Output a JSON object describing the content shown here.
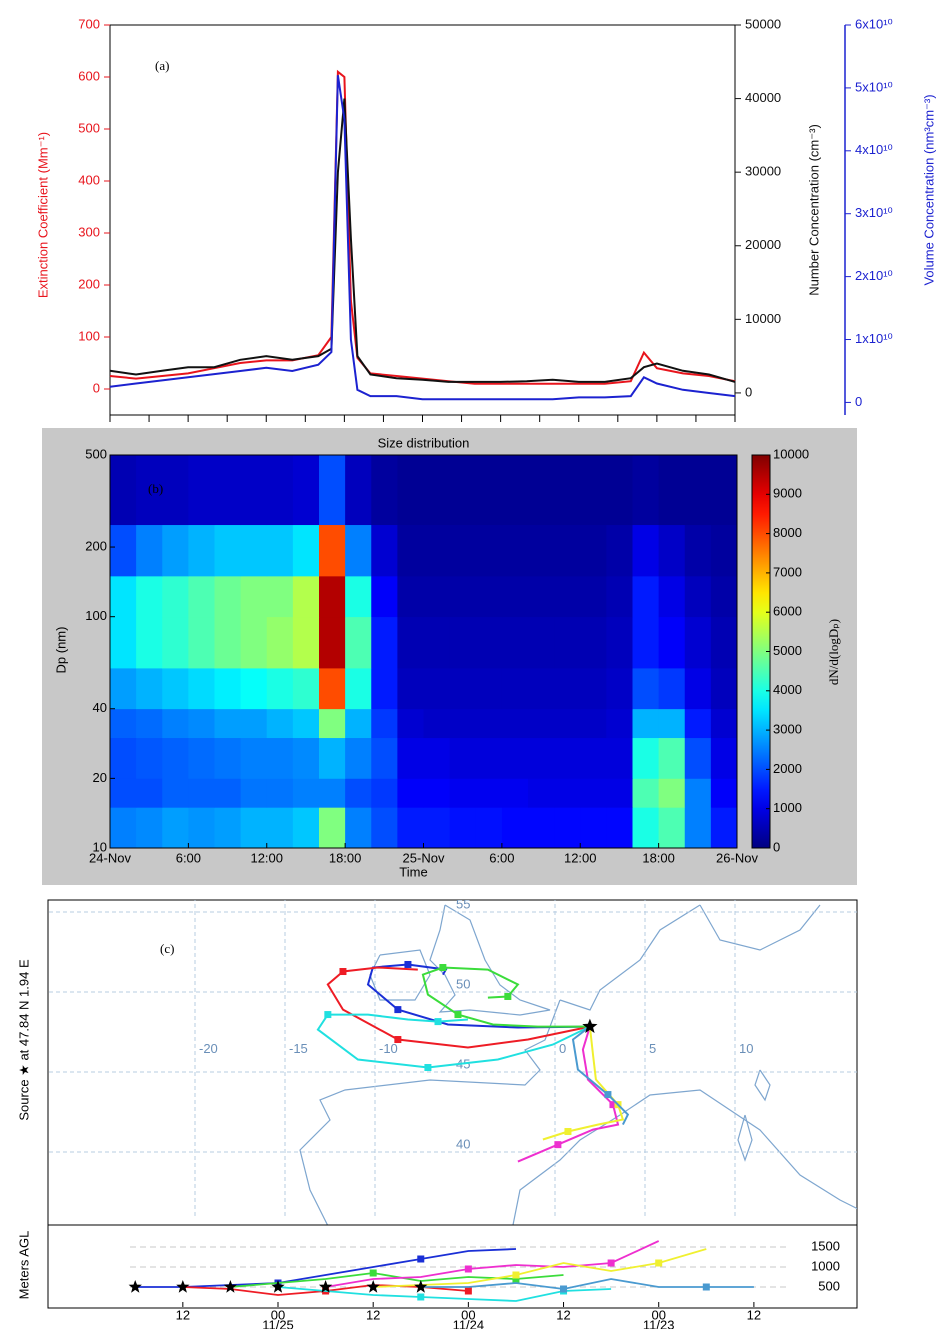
{
  "chart_data": [
    {
      "type": "line",
      "annotation": "(a)",
      "ylabel": "Extinction Coefficient (Mm⁻¹)",
      "y2label": "Number Concentration (cm⁻³)",
      "y3label": "Volume Concentration (nm³cm⁻³)",
      "x": [
        0,
        2,
        4,
        6,
        8,
        10,
        12,
        14,
        16,
        17,
        17.5,
        18,
        18.5,
        19,
        20,
        22,
        24,
        26,
        28,
        30,
        32,
        34,
        36,
        38,
        40,
        41,
        42,
        44,
        46,
        48
      ],
      "xlim": [
        0,
        48
      ],
      "xticks": [
        0,
        3,
        6,
        9,
        12,
        15,
        18,
        21,
        24,
        27,
        30,
        33,
        36,
        39,
        42,
        45,
        48
      ],
      "ylim": [
        -50,
        700
      ],
      "yticks": [
        0,
        100,
        200,
        300,
        400,
        500,
        600,
        700
      ],
      "y2lim": [
        -3000,
        50000
      ],
      "y2ticks": [
        0,
        10000,
        20000,
        30000,
        40000,
        50000
      ],
      "y3lim": [
        -2000000000,
        60000000000
      ],
      "y3ticks": [
        0,
        {
          "value": 10000000000,
          "label": "1x10¹⁰"
        },
        {
          "value": 20000000000,
          "label": "2x10¹⁰"
        },
        {
          "value": 30000000000,
          "label": "3x10¹⁰"
        },
        {
          "value": 40000000000,
          "label": "4x10¹⁰"
        },
        {
          "value": 50000000000,
          "label": "5x10¹⁰"
        },
        {
          "value": 60000000000,
          "label": "6x10¹⁰"
        }
      ],
      "series": [
        {
          "color": "#e8141c",
          "values": [
            25,
            20,
            25,
            30,
            40,
            50,
            55,
            55,
            65,
            100,
            610,
            600,
            170,
            60,
            30,
            25,
            20,
            15,
            10,
            10,
            10,
            10,
            10,
            10,
            15,
            70,
            40,
            30,
            25,
            15
          ]
        },
        {
          "color": "#111111",
          "axis": "y2",
          "values": [
            3000,
            2500,
            3000,
            3500,
            3500,
            4500,
            5000,
            4500,
            5000,
            6000,
            30000,
            40000,
            21000,
            5000,
            2500,
            2000,
            1800,
            1500,
            1500,
            1500,
            1600,
            1800,
            1500,
            1500,
            2000,
            3500,
            4000,
            3000,
            2500,
            1500
          ]
        },
        {
          "color": "#1c22d0",
          "axis": "y3",
          "values": [
            2500000000,
            3000000000,
            3500000000,
            4000000000,
            4500000000,
            5000000000,
            5500000000,
            5000000000,
            6000000000,
            8000000000,
            52000000000,
            45000000000,
            10000000000,
            2000000000,
            1000000000,
            1000000000,
            500000000,
            500000000,
            500000000,
            500000000,
            500000000,
            500000000,
            800000000,
            800000000,
            1000000000,
            4000000000,
            3000000000,
            2000000000,
            1500000000,
            1000000000
          ]
        }
      ]
    },
    {
      "type": "heatmap",
      "title": "Size distribution",
      "annotation": "(b)",
      "ylabel": "Dp (nm)",
      "xlabel": "Time",
      "colorbar_label": "dN/d(logDₚ)",
      "xlim": [
        0,
        48
      ],
      "xticks": [
        {
          "value": 0,
          "label": "24-Nov"
        },
        {
          "value": 6,
          "label": "6:00"
        },
        {
          "value": 12,
          "label": "12:00"
        },
        {
          "value": 18,
          "label": "18:00"
        },
        {
          "value": 24,
          "label": "25-Nov"
        },
        {
          "value": 30,
          "label": "6:00"
        },
        {
          "value": 36,
          "label": "12:00"
        },
        {
          "value": 42,
          "label": "18:00"
        },
        {
          "value": 48,
          "label": "26-Nov"
        }
      ],
      "ylim": [
        10,
        500
      ],
      "yticks": [
        10,
        20,
        40,
        100,
        200,
        500
      ],
      "log_y": true,
      "xbins": [
        0,
        2,
        4,
        6,
        8,
        10,
        12,
        14,
        16,
        18,
        20,
        22,
        24,
        26,
        28,
        30,
        32,
        34,
        36,
        38,
        40,
        42,
        44,
        46,
        48
      ],
      "ybins": [
        10,
        15,
        20,
        30,
        40,
        60,
        100,
        150,
        250,
        500
      ],
      "z": [
        [
          2500,
          2600,
          2800,
          2700,
          2800,
          3000,
          3000,
          3200,
          5000,
          2500,
          2000,
          1500,
          1500,
          1400,
          1400,
          1300,
          1300,
          1300,
          1300,
          1300,
          4000,
          4500,
          2500,
          1500
        ],
        [
          2000,
          2000,
          2200,
          2200,
          2200,
          2400,
          2400,
          2500,
          2500,
          2000,
          1800,
          1200,
          1200,
          1100,
          1100,
          1100,
          1000,
          1000,
          1000,
          1000,
          4500,
          5000,
          2500,
          1200
        ],
        [
          2000,
          2100,
          2200,
          2300,
          2400,
          2500,
          2500,
          2600,
          3000,
          2500,
          2000,
          1000,
          1000,
          900,
          900,
          900,
          900,
          900,
          900,
          900,
          4000,
          4500,
          2000,
          1000
        ],
        [
          2200,
          2300,
          2500,
          2600,
          2800,
          2800,
          3000,
          3200,
          5000,
          3000,
          1800,
          800,
          700,
          700,
          700,
          700,
          700,
          700,
          700,
          800,
          3000,
          3000,
          1500,
          800
        ],
        [
          2800,
          3000,
          3200,
          3400,
          3600,
          3800,
          4000,
          4200,
          8000,
          4000,
          1500,
          600,
          600,
          600,
          600,
          600,
          600,
          600,
          600,
          700,
          2000,
          1800,
          1000,
          600
        ],
        [
          3500,
          4000,
          4200,
          4500,
          4800,
          5000,
          5200,
          5500,
          9500,
          4500,
          1500,
          500,
          500,
          500,
          500,
          500,
          500,
          500,
          500,
          600,
          1500,
          1200,
          800,
          500
        ],
        [
          3500,
          4000,
          4200,
          4500,
          4800,
          5000,
          5000,
          5500,
          9500,
          4000,
          1200,
          400,
          400,
          400,
          400,
          400,
          400,
          400,
          400,
          500,
          1500,
          1000,
          600,
          400
        ],
        [
          2000,
          2500,
          2800,
          3000,
          3200,
          3200,
          3200,
          3500,
          8000,
          2500,
          800,
          300,
          300,
          300,
          300,
          300,
          300,
          300,
          300,
          400,
          1000,
          700,
          400,
          300
        ],
        [
          500,
          600,
          600,
          700,
          700,
          700,
          700,
          800,
          2000,
          600,
          300,
          200,
          200,
          200,
          200,
          200,
          200,
          200,
          200,
          200,
          300,
          200,
          200,
          200
        ]
      ],
      "zlim": [
        0,
        10000
      ],
      "zticks": [
        0,
        1000,
        2000,
        3000,
        4000,
        5000,
        6000,
        7000,
        8000,
        9000,
        10000
      ],
      "colormap": "jet"
    },
    {
      "type": "trajectory",
      "annotation": "(c)",
      "source_label": "Source ★ at 47.84 N 1.94 E",
      "height_label": "Meters AGL",
      "lon_labels": [
        -20,
        -15,
        -10,
        0,
        5,
        10
      ],
      "lat_labels": [
        55,
        50,
        45,
        40
      ],
      "xlim": [
        77,
        -25
      ],
      "xticks": [
        {
          "value": 60,
          "label": "12"
        },
        {
          "value": 48,
          "label": "00"
        },
        {
          "value": 36,
          "label": "12"
        },
        {
          "value": 24,
          "label": "00"
        },
        {
          "value": 12,
          "label": "12"
        },
        {
          "value": 0,
          "label": "00"
        },
        {
          "value": -12,
          "label": "12"
        }
      ],
      "date_labels": [
        {
          "value": 48,
          "label": "11/25"
        },
        {
          "value": 24,
          "label": "11/24"
        },
        {
          "value": 0,
          "label": "11/23"
        }
      ],
      "ylim": [
        0,
        2000
      ],
      "yticks": [
        500,
        1000,
        1500
      ],
      "trajectories": [
        {
          "color": "#1a2fd6",
          "lon": [
            1.94,
            -2.06,
            -5.95,
            -8.73,
            -10.39,
            -10.12,
            -8.17,
            -6.06,
            -6.23
          ],
          "lat": [
            47.84,
            47.78,
            47.97,
            48.9,
            50.47,
            51.53,
            51.72,
            51.4,
            51.09
          ],
          "hours": [
            66,
            60,
            54,
            48,
            42,
            36,
            30,
            24,
            18
          ],
          "height": [
            500,
            500,
            550,
            600,
            800,
            1000,
            1200,
            1400,
            1450
          ]
        },
        {
          "color": "#ee1c25",
          "lon": [
            1.94,
            -1.5,
            -4.84,
            -8.73,
            -11.78,
            -12.62,
            -11.78,
            -9.84,
            -7.62
          ],
          "lat": [
            47.84,
            47.03,
            46.53,
            47.03,
            48.9,
            50.47,
            51.28,
            51.53,
            51.4
          ],
          "hours": [
            60,
            54,
            48,
            42,
            36,
            30,
            24
          ],
          "height": [
            500,
            450,
            300,
            400,
            550,
            500,
            400
          ]
        },
        {
          "color": "#3bdc3b",
          "lon": [
            1.94,
            -0.95,
            -3.45,
            -5.39,
            -7.06,
            -7.34,
            -6.23,
            -3.73,
            -2.06,
            -2.62,
            -3.73
          ],
          "lat": [
            47.84,
            47.84,
            47.97,
            48.59,
            49.84,
            51.09,
            51.53,
            51.4,
            50.47,
            49.72,
            49.65
          ],
          "hours": [
            54,
            48,
            42,
            36,
            30,
            24,
            18,
            12
          ],
          "height": [
            500,
            600,
            700,
            850,
            650,
            750,
            700,
            800
          ]
        },
        {
          "color": "#20e0e0",
          "lon": [
            1.94,
            -0.12,
            -3.17,
            -7.06,
            -10.95,
            -13.17,
            -12.62,
            -10.39,
            -8.17,
            -6.5,
            -4.84
          ],
          "lat": [
            47.84,
            46.71,
            45.78,
            45.28,
            45.78,
            47.65,
            48.59,
            48.59,
            48.28,
            48.15,
            48.28
          ],
          "hours": [
            48,
            42,
            36,
            30,
            24,
            18,
            12,
            6
          ],
          "height": [
            500,
            400,
            300,
            250,
            200,
            150,
            400,
            450
          ]
        },
        {
          "color": "#ee2fcf",
          "lon": [
            1.94,
            1.55,
            1.83,
            3.22,
            3.5,
            2.11,
            0.16,
            -2.06
          ],
          "lat": [
            47.84,
            46.4,
            44.53,
            42.96,
            41.71,
            41.4,
            40.46,
            39.4
          ],
          "hours": [
            42,
            36,
            30,
            24,
            18,
            12,
            6,
            0
          ],
          "height": [
            500,
            700,
            750,
            950,
            1050,
            1000,
            1100,
            1650
          ]
        },
        {
          "color": "#f0f030",
          "lon": [
            1.94,
            2.11,
            2.27,
            3.5,
            3.77,
            2.38,
            0.72,
            -0.67
          ],
          "lat": [
            47.84,
            46.09,
            44.53,
            42.96,
            42.03,
            41.71,
            41.28,
            40.78
          ],
          "hours": [
            36,
            30,
            24,
            18,
            12,
            6,
            0,
            -6
          ],
          "height": [
            500,
            550,
            600,
            800,
            1100,
            900,
            1100,
            1450
          ]
        },
        {
          "color": "#4a9ad0",
          "lon": [
            1.94,
            1.0,
            1.27,
            2.94,
            4.05,
            3.77
          ],
          "lat": [
            47.84,
            47.03,
            45.15,
            43.59,
            42.34,
            41.71
          ],
          "hours": [
            30,
            24,
            18,
            12,
            6,
            0,
            -6,
            -12
          ],
          "height": [
            500,
            500,
            600,
            450,
            700,
            500,
            500,
            500
          ]
        }
      ]
    }
  ]
}
